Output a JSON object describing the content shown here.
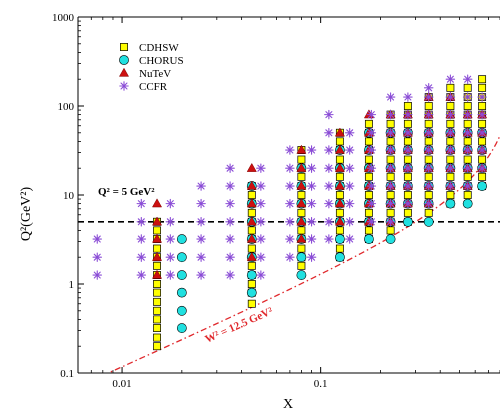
{
  "chart_data": {
    "type": "scatter",
    "xlabel": "X",
    "ylabel": "Q²(GeV²)",
    "x_scale": "log",
    "y_scale": "log",
    "xlim": [
      0.006,
      0.8
    ],
    "ylim": [
      0.1,
      1000
    ],
    "x_ticks": [
      {
        "value": 0.01,
        "label": "0.01"
      },
      {
        "value": 0.1,
        "label": "0.1"
      }
    ],
    "y_ticks": [
      {
        "value": 0.1,
        "label": "0.1"
      },
      {
        "value": 1,
        "label": "1"
      },
      {
        "value": 10,
        "label": "10"
      },
      {
        "value": 100,
        "label": "100"
      },
      {
        "value": 1000,
        "label": "1000"
      }
    ],
    "grid": false,
    "legend_position": "top-left",
    "series": [
      {
        "name": "CDHSW",
        "marker": "square",
        "color": "#ffff00",
        "edge": "#000000",
        "x": [
          0.015,
          0.045,
          0.08,
          0.125,
          0.175,
          0.225,
          0.275,
          0.35,
          0.45,
          0.55,
          0.65
        ],
        "q2": [
          [
            0.2,
            0.25,
            0.32,
            0.4,
            0.5,
            0.63,
            0.8,
            1.0,
            1.26,
            1.6,
            2.0,
            2.5,
            3.2,
            4.0,
            5.0
          ],
          [
            0.6,
            0.8,
            1.0,
            1.26,
            1.6,
            2.0,
            2.5,
            3.2,
            4.0,
            5.0,
            6.3,
            8.0,
            10.0,
            12.6
          ],
          [
            1.6,
            2.0,
            2.5,
            3.2,
            4.0,
            5.0,
            6.3,
            8.0,
            10.0,
            12.6,
            16.0,
            20.0,
            25.0,
            32.0
          ],
          [
            2.0,
            2.5,
            3.2,
            4.0,
            5.0,
            6.3,
            8.0,
            10.0,
            12.6,
            16.0,
            20.0,
            25.0,
            32.0,
            40.0,
            50.0
          ],
          [
            3.2,
            4.0,
            5.0,
            6.3,
            8.0,
            10.0,
            12.6,
            16.0,
            20.0,
            25.0,
            32.0,
            40.0,
            50.0,
            63.0
          ],
          [
            4.0,
            5.0,
            6.3,
            8.0,
            10.0,
            12.6,
            16.0,
            20.0,
            25.0,
            32.0,
            40.0,
            50.0,
            63.0,
            80.0
          ],
          [
            5.0,
            6.3,
            8.0,
            10.0,
            12.6,
            16.0,
            20.0,
            25.0,
            32.0,
            40.0,
            50.0,
            63.0,
            80.0,
            100.0
          ],
          [
            6.3,
            8.0,
            10.0,
            12.6,
            16.0,
            20.0,
            25.0,
            32.0,
            40.0,
            50.0,
            63.0,
            80.0,
            100.0,
            126.0
          ],
          [
            8.0,
            10.0,
            12.6,
            16.0,
            20.0,
            25.0,
            32.0,
            40.0,
            50.0,
            63.0,
            80.0,
            100.0,
            126.0,
            160.0
          ],
          [
            10.0,
            12.6,
            16.0,
            20.0,
            25.0,
            32.0,
            40.0,
            50.0,
            63.0,
            80.0,
            100.0,
            126.0,
            160.0
          ],
          [
            12.6,
            16.0,
            20.0,
            25.0,
            32.0,
            40.0,
            50.0,
            63.0,
            80.0,
            100.0,
            126.0,
            160.0,
            200.0
          ]
        ]
      },
      {
        "name": "CHORUS",
        "marker": "circle",
        "color": "#20e0e0",
        "edge": "#000000",
        "x": [
          0.02,
          0.045,
          0.08,
          0.125,
          0.175,
          0.225,
          0.275,
          0.35,
          0.45,
          0.55,
          0.65
        ],
        "q2": [
          [
            0.32,
            0.5,
            0.8,
            1.26,
            2.0,
            3.2
          ],
          [
            0.8,
            1.26,
            2.0,
            3.2,
            5.0,
            8.0,
            12.6
          ],
          [
            1.26,
            2.0,
            3.2,
            5.0,
            8.0,
            12.6,
            20.0
          ],
          [
            2.0,
            3.2,
            5.0,
            8.0,
            12.6,
            20.0,
            32.0
          ],
          [
            3.2,
            5.0,
            8.0,
            12.6,
            20.0,
            32.0,
            50.0
          ],
          [
            3.2,
            5.0,
            8.0,
            12.6,
            20.0,
            32.0,
            50.0
          ],
          [
            5.0,
            8.0,
            12.6,
            20.0,
            32.0,
            50.0
          ],
          [
            5.0,
            8.0,
            12.6,
            20.0,
            32.0,
            50.0
          ],
          [
            8.0,
            12.6,
            20.0,
            32.0,
            50.0
          ],
          [
            8.0,
            12.6,
            20.0,
            32.0,
            50.0
          ],
          [
            12.6,
            20.0,
            32.0,
            50.0
          ]
        ]
      },
      {
        "name": "NuTeV",
        "marker": "triangle",
        "color": "#cc1010",
        "edge": "#800000",
        "x": [
          0.015,
          0.045,
          0.08,
          0.125,
          0.175,
          0.225,
          0.275,
          0.35,
          0.45,
          0.55,
          0.65
        ],
        "q2": [
          [
            1.26,
            2.0,
            3.2,
            5.0,
            8.0
          ],
          [
            2.0,
            3.2,
            5.0,
            8.0,
            12.6,
            20.0
          ],
          [
            3.2,
            5.0,
            8.0,
            12.6,
            20.0,
            32.0
          ],
          [
            5.0,
            8.0,
            12.6,
            20.0,
            32.0,
            50.0
          ],
          [
            5.0,
            8.0,
            12.6,
            20.0,
            32.0,
            50.0,
            80.0
          ],
          [
            5.0,
            8.0,
            12.6,
            20.0,
            32.0,
            50.0,
            80.0
          ],
          [
            8.0,
            12.6,
            20.0,
            32.0,
            50.0,
            80.0
          ],
          [
            8.0,
            12.6,
            20.0,
            32.0,
            50.0,
            80.0,
            126.0
          ],
          [
            12.6,
            20.0,
            32.0,
            50.0,
            80.0,
            126.0
          ],
          [
            12.6,
            20.0,
            32.0,
            50.0,
            80.0
          ],
          [
            20.0,
            32.0,
            50.0,
            80.0
          ]
        ]
      },
      {
        "name": "CCFR",
        "marker": "asterisk",
        "color": "#8a4cd6",
        "x": [
          0.0075,
          0.0125,
          0.0175,
          0.025,
          0.035,
          0.05,
          0.07,
          0.09,
          0.11,
          0.14,
          0.18,
          0.225,
          0.275,
          0.35,
          0.45,
          0.55,
          0.65
        ],
        "q2": [
          [
            1.26,
            2.0,
            3.2
          ],
          [
            1.26,
            2.0,
            3.2,
            5.0,
            8.0
          ],
          [
            1.26,
            2.0,
            3.2,
            5.0,
            8.0
          ],
          [
            1.26,
            2.0,
            3.2,
            5.0,
            8.0,
            12.6
          ],
          [
            1.26,
            2.0,
            3.2,
            5.0,
            8.0,
            12.6,
            20.0
          ],
          [
            1.26,
            2.0,
            3.2,
            5.0,
            8.0,
            12.6,
            20.0
          ],
          [
            2.0,
            3.2,
            5.0,
            8.0,
            12.6,
            20.0,
            32.0
          ],
          [
            2.0,
            3.2,
            5.0,
            8.0,
            12.6,
            20.0,
            32.0
          ],
          [
            3.2,
            5.0,
            8.0,
            12.6,
            20.0,
            32.0,
            50.0,
            80.0
          ],
          [
            3.2,
            5.0,
            8.0,
            12.6,
            20.0,
            32.0,
            50.0
          ],
          [
            5.0,
            8.0,
            12.6,
            20.0,
            32.0,
            50.0,
            80.0
          ],
          [
            5.0,
            8.0,
            12.6,
            20.0,
            32.0,
            50.0,
            80.0,
            126.0
          ],
          [
            8.0,
            12.6,
            20.0,
            32.0,
            50.0,
            80.0,
            126.0
          ],
          [
            8.0,
            12.6,
            20.0,
            32.0,
            50.0,
            80.0,
            126.0,
            160.0
          ],
          [
            12.6,
            20.0,
            32.0,
            50.0,
            80.0,
            126.0,
            200.0
          ],
          [
            12.6,
            20.0,
            32.0,
            50.0,
            80.0,
            126.0,
            200.0
          ],
          [
            20.0,
            32.0,
            50.0,
            80.0,
            126.0
          ]
        ]
      }
    ],
    "reference_lines": [
      {
        "type": "horizontal",
        "q2": 5,
        "style": "dashed",
        "color": "#000000",
        "label": "Q² = 5 GeV²"
      }
    ],
    "curves": [
      {
        "label": "W² = 12.5 GeV²",
        "style": "dashed",
        "color": "#e0282c",
        "W2": 12.5,
        "nucleon_mass_sq": 0.88
      }
    ]
  }
}
